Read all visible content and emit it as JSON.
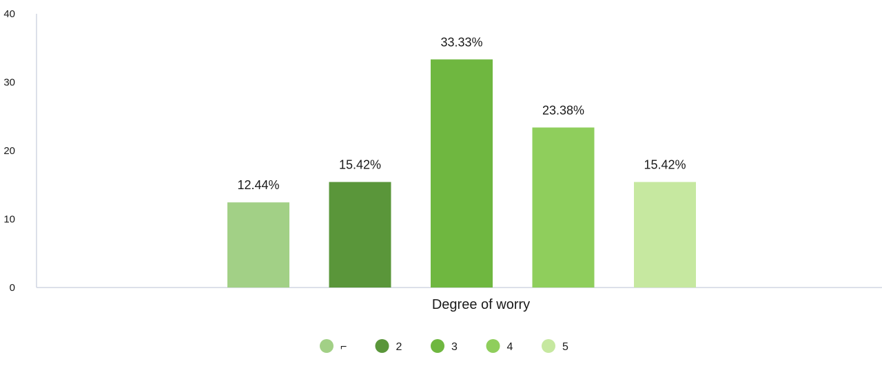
{
  "chart_data": {
    "type": "bar",
    "xlabel": "Degree of worry",
    "ylabel": "",
    "ylim": [
      0,
      40
    ],
    "yticks": [
      0,
      10,
      20,
      30,
      40
    ],
    "grid": false,
    "legend_position": "bottom",
    "series": [
      {
        "name": "1",
        "legend_label": "⌐",
        "value": 12.44,
        "label": "12.44%",
        "color": "#a2d086"
      },
      {
        "name": "2",
        "legend_label": "2",
        "value": 15.42,
        "label": "15.42%",
        "color": "#5a963a"
      },
      {
        "name": "3",
        "legend_label": "3",
        "value": 33.33,
        "label": "33.33%",
        "color": "#6fb740"
      },
      {
        "name": "4",
        "legend_label": "4",
        "value": 23.38,
        "label": "23.38%",
        "color": "#8fce5c"
      },
      {
        "name": "5",
        "legend_label": "5",
        "value": 15.42,
        "label": "15.42%",
        "color": "#c6e8a0"
      }
    ]
  }
}
